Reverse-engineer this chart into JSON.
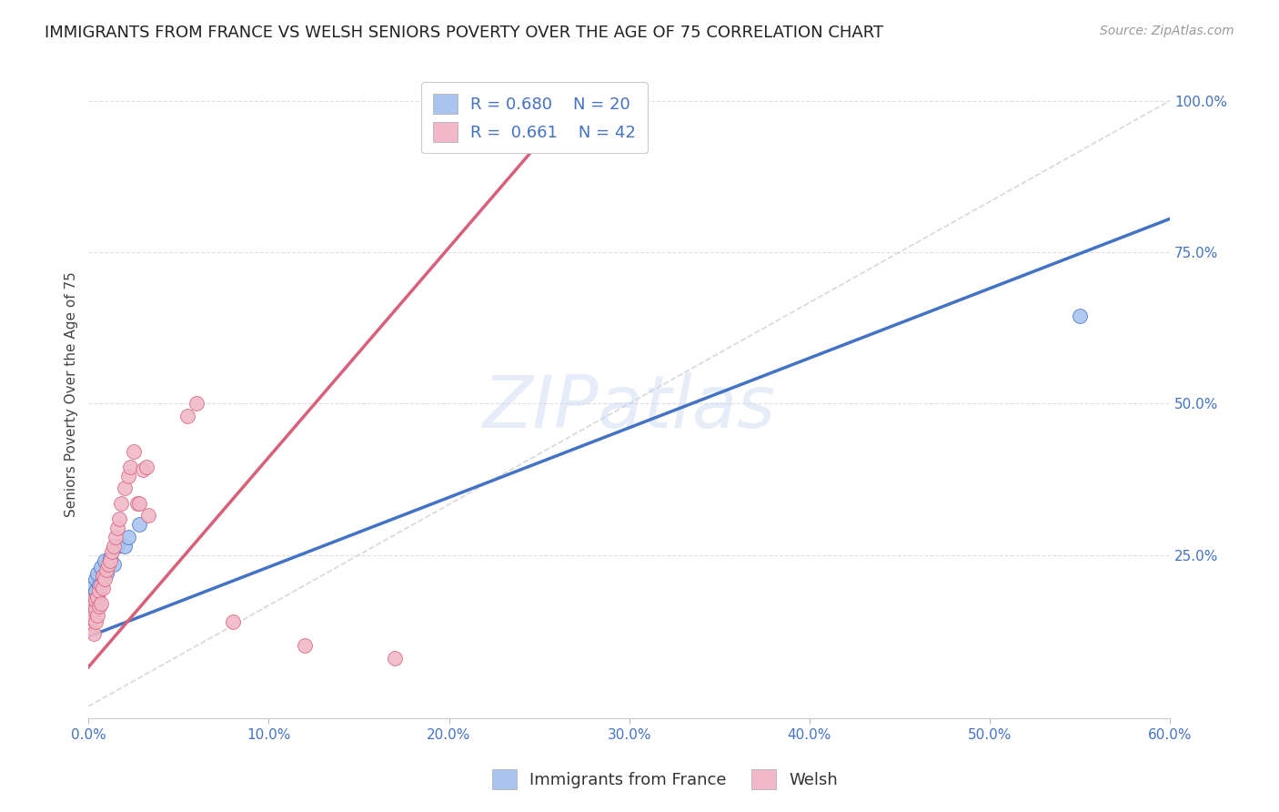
{
  "title": "IMMIGRANTS FROM FRANCE VS WELSH SENIORS POVERTY OVER THE AGE OF 75 CORRELATION CHART",
  "source": "Source: ZipAtlas.com",
  "ylabel": "Seniors Poverty Over the Age of 75",
  "xlim": [
    0.0,
    0.6
  ],
  "ylim": [
    -0.02,
    1.05
  ],
  "xtick_vals": [
    0.0,
    0.1,
    0.2,
    0.3,
    0.4,
    0.5,
    0.6
  ],
  "ytick_vals": [
    0.25,
    0.5,
    0.75,
    1.0
  ],
  "blue_R": "0.680",
  "blue_N": "20",
  "pink_R": "0.661",
  "pink_N": "42",
  "blue_color": "#aac4f0",
  "pink_color": "#f0b8c8",
  "blue_line_color": "#4472c4",
  "pink_line_color": "#d9607a",
  "legend_label_blue": "Immigrants from France",
  "legend_label_pink": "Welsh",
  "watermark": "ZIPatlas",
  "blue_line_x0": 0.0,
  "blue_line_y0": 0.115,
  "blue_line_x1": 0.6,
  "blue_line_y1": 0.805,
  "pink_line_x0": 0.0,
  "pink_line_y0": 0.065,
  "pink_line_x1": 0.27,
  "pink_line_y1": 1.0,
  "ref_line_x0": 0.0,
  "ref_line_y0": 0.0,
  "ref_line_x1": 0.6,
  "ref_line_y1": 1.0,
  "background_color": "#ffffff",
  "grid_color": "#dddddd",
  "blue_scatter_x": [
    0.001,
    0.002,
    0.003,
    0.003,
    0.004,
    0.004,
    0.005,
    0.005,
    0.006,
    0.007,
    0.008,
    0.009,
    0.01,
    0.012,
    0.014,
    0.016,
    0.02,
    0.022,
    0.028,
    0.55
  ],
  "blue_scatter_y": [
    0.175,
    0.195,
    0.16,
    0.185,
    0.21,
    0.19,
    0.175,
    0.22,
    0.2,
    0.23,
    0.215,
    0.24,
    0.22,
    0.245,
    0.235,
    0.265,
    0.265,
    0.28,
    0.3,
    0.645
  ],
  "pink_scatter_x": [
    0.001,
    0.001,
    0.002,
    0.002,
    0.003,
    0.003,
    0.003,
    0.004,
    0.004,
    0.004,
    0.005,
    0.005,
    0.006,
    0.006,
    0.007,
    0.007,
    0.008,
    0.008,
    0.009,
    0.01,
    0.011,
    0.012,
    0.013,
    0.014,
    0.015,
    0.016,
    0.017,
    0.018,
    0.02,
    0.022,
    0.023,
    0.025,
    0.027,
    0.028,
    0.03,
    0.032,
    0.033,
    0.055,
    0.06,
    0.08,
    0.12,
    0.17
  ],
  "pink_scatter_y": [
    0.155,
    0.13,
    0.145,
    0.16,
    0.12,
    0.165,
    0.175,
    0.14,
    0.16,
    0.175,
    0.15,
    0.18,
    0.165,
    0.19,
    0.17,
    0.2,
    0.195,
    0.215,
    0.21,
    0.225,
    0.235,
    0.24,
    0.255,
    0.265,
    0.28,
    0.295,
    0.31,
    0.335,
    0.36,
    0.38,
    0.395,
    0.42,
    0.335,
    0.335,
    0.39,
    0.395,
    0.315,
    0.48,
    0.5,
    0.14,
    0.1,
    0.08
  ]
}
